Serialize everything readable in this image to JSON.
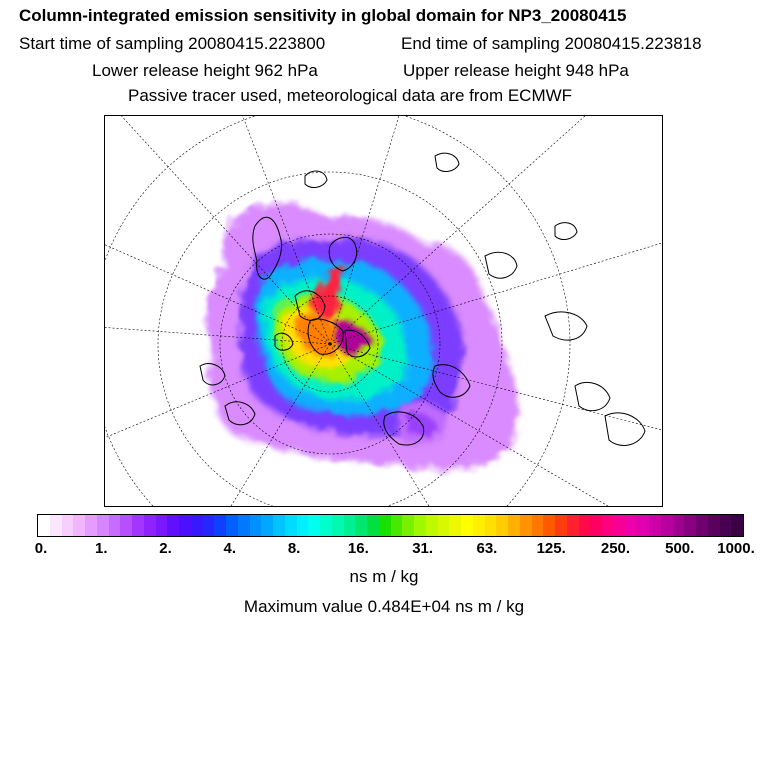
{
  "header": {
    "title": "Column-integrated emission sensitivity in global domain for NP3_20080415",
    "start_time": "Start time of sampling 20080415.223800",
    "end_time": "End time of sampling 20080415.223818",
    "lower_release": "Lower release height  962 hPa",
    "upper_release": "Upper release height  948 hPa",
    "tracer_note": "Passive tracer used, meteorological data are from ECMWF"
  },
  "colorbar": {
    "ticks": [
      "0.",
      "1.",
      "2.",
      "4.",
      "8.",
      "16.",
      "31.",
      "63.",
      "125.",
      "250.",
      "500.",
      "1000."
    ],
    "colors": [
      "#ffffff",
      "#fbe6ff",
      "#f7ceff",
      "#f1b6ff",
      "#e69cff",
      "#d884ff",
      "#c86cff",
      "#b650ff",
      "#a236ff",
      "#8f22ff",
      "#7a18ff",
      "#6010ff",
      "#4a10ff",
      "#3818ff",
      "#2428ff",
      "#1040ff",
      "#0060ff",
      "#0078ff",
      "#0090ff",
      "#00a8ff",
      "#00c4ff",
      "#00dcff",
      "#00f0ff",
      "#00ffee",
      "#00ffcc",
      "#00f8b0",
      "#00f094",
      "#00e870",
      "#00e040",
      "#18e000",
      "#48e800",
      "#78f000",
      "#a0f800",
      "#c0f800",
      "#d8f800",
      "#eef800",
      "#ffff00",
      "#fff000",
      "#ffe000",
      "#ffcc00",
      "#ffb000",
      "#ff9400",
      "#ff7800",
      "#ff5a00",
      "#ff3c10",
      "#ff2030",
      "#ff0a48",
      "#ff0060",
      "#ff0080",
      "#f80098",
      "#ee00a8",
      "#e000b0",
      "#cc00a8",
      "#b800a0",
      "#a00090",
      "#880080",
      "#700070",
      "#5a005e",
      "#480050",
      "#3a0044"
    ],
    "unit_label": "ns m / kg"
  },
  "max_value": "Maximum value  0.484E+04 ns m / kg"
}
